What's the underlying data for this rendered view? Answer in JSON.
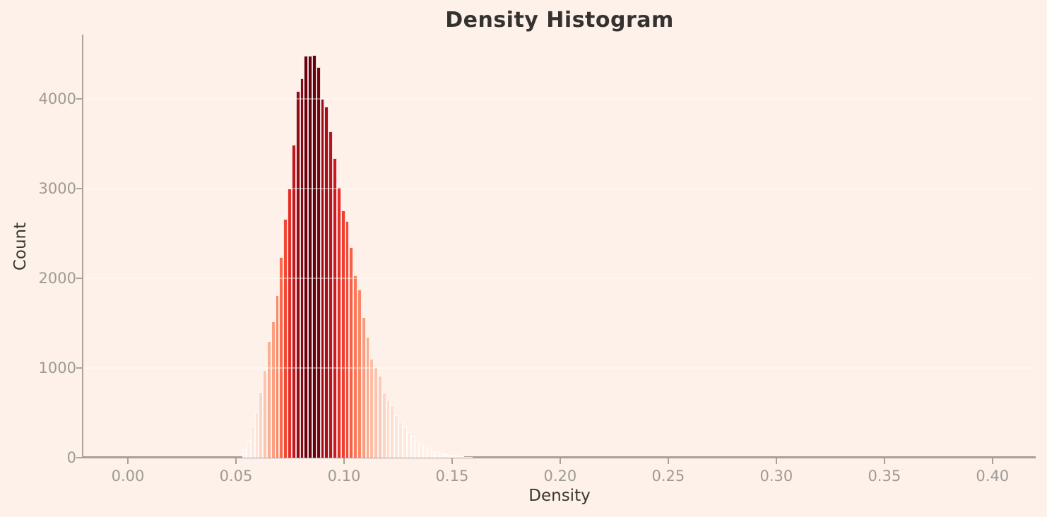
{
  "figure": {
    "background_color": "#fdf1ea"
  },
  "chart_data": {
    "type": "bar",
    "variant": "histogram",
    "title": "Density Histogram",
    "xlabel": "Density",
    "ylabel": "Count",
    "xlim": [
      -0.0206,
      0.42
    ],
    "ylim": [
      0,
      4720
    ],
    "legend": null,
    "grid": {
      "axis": "y",
      "color": "rgba(255,255,255,0.38)",
      "drawn_over_bars": true
    },
    "x_ticks": {
      "values": [
        0.0,
        0.05,
        0.1,
        0.15,
        0.2,
        0.25,
        0.3,
        0.35,
        0.4
      ],
      "labels": [
        "0.00",
        "0.05",
        "0.10",
        "0.15",
        "0.20",
        "0.25",
        "0.30",
        "0.35",
        "0.40"
      ]
    },
    "y_ticks": {
      "values": [
        0,
        1000,
        2000,
        3000,
        4000
      ],
      "labels": [
        "0",
        "1000",
        "2000",
        "3000",
        "4000"
      ]
    },
    "bins": {
      "start": 0.053,
      "width": 0.0019
    },
    "counts": [
      95,
      200,
      355,
      505,
      730,
      980,
      1300,
      1520,
      1810,
      2235,
      2665,
      3000,
      3490,
      4090,
      4230,
      4480,
      4480,
      4495,
      4360,
      4000,
      3920,
      3640,
      3340,
      3020,
      2760,
      2640,
      2350,
      2030,
      1875,
      1565,
      1350,
      1100,
      1010,
      915,
      723,
      645,
      585,
      475,
      400,
      340,
      285,
      245,
      192,
      155,
      135,
      110,
      68,
      68,
      55,
      37,
      29,
      25,
      20,
      15,
      10,
      6
    ],
    "peak_count": 4495,
    "bar_colors": {
      "colormap": "Reds",
      "normalized_by": "max_count",
      "stops": [
        [
          0.0,
          "#fff5f0"
        ],
        [
          0.125,
          "#fee0d2"
        ],
        [
          0.25,
          "#fcbba1"
        ],
        [
          0.375,
          "#fc9272"
        ],
        [
          0.5,
          "#fb6a4a"
        ],
        [
          0.625,
          "#ef3b2c"
        ],
        [
          0.75,
          "#cb181d"
        ],
        [
          0.875,
          "#a50f15"
        ],
        [
          1.0,
          "#67000d"
        ]
      ]
    },
    "bar_edge_color": "rgba(255,255,255,0.85)"
  },
  "axes_style": {
    "spine_color": "#aba49f",
    "tick_label_color": "#9e9a95",
    "axis_label_color": "#3a3632",
    "title_color": "#35312f"
  }
}
